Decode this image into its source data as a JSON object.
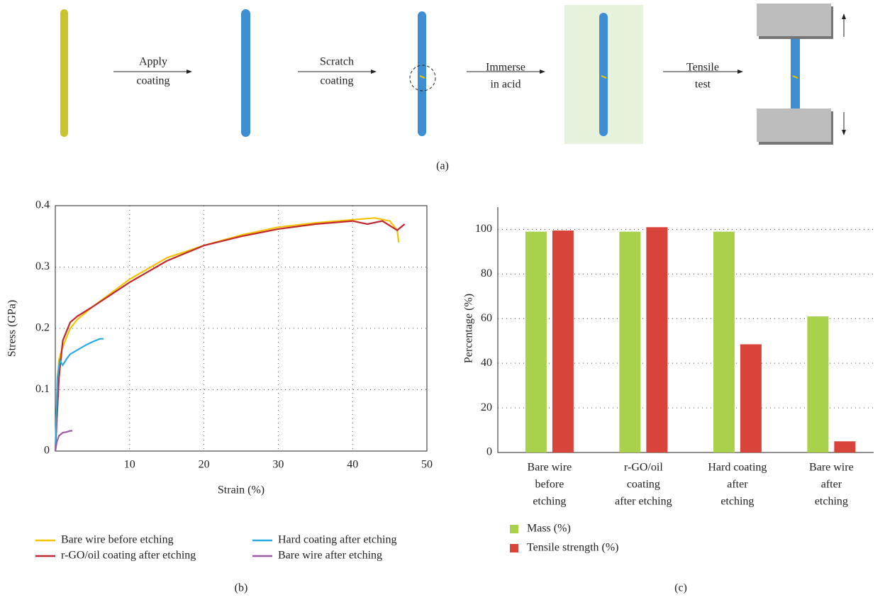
{
  "diagram": {
    "steps": [
      [
        "Apply",
        "coating"
      ],
      [
        "Scratch",
        "coating"
      ],
      [
        "Immerse",
        "in acid"
      ],
      [
        "Tensile",
        "test"
      ]
    ],
    "label": "(a)"
  },
  "chart_data": [
    {
      "type": "line",
      "label": "(b)",
      "x_label": "Strain (%)",
      "y_label": "Stress (GPa)",
      "xlim": [
        0,
        50
      ],
      "xticks": [
        10,
        20,
        30,
        40,
        50
      ],
      "ylim": [
        0,
        0.4
      ],
      "yticks": [
        0,
        0.1,
        0.2,
        0.3,
        0.4
      ],
      "grid": true,
      "legend": "bottom",
      "series": [
        {
          "name": "Bare wire before etching",
          "color": "#f5c400",
          "x": [
            0,
            0.3,
            0.5,
            1,
            2,
            3,
            5,
            10,
            15,
            20,
            25,
            30,
            35,
            40,
            43,
            45,
            46,
            46.2
          ],
          "values": [
            0,
            0.12,
            0.15,
            0.17,
            0.2,
            0.215,
            0.235,
            0.28,
            0.315,
            0.335,
            0.352,
            0.365,
            0.372,
            0.377,
            0.38,
            0.375,
            0.36,
            0.34
          ]
        },
        {
          "name": "r-GO/oil coating after etching",
          "color": "#c0282d",
          "x": [
            0,
            0.5,
            1,
            2,
            3,
            5,
            10,
            15,
            20,
            25,
            30,
            35,
            40,
            42,
            44,
            46,
            47
          ],
          "values": [
            0,
            0.12,
            0.18,
            0.21,
            0.22,
            0.235,
            0.275,
            0.31,
            0.335,
            0.35,
            0.362,
            0.37,
            0.375,
            0.37,
            0.375,
            0.36,
            0.37
          ]
        },
        {
          "name": "Hard coating after etching",
          "color": "#29abe2",
          "x": [
            0,
            0.3,
            0.6,
            1,
            1.5,
            2,
            3,
            4,
            5,
            6,
            6.5
          ],
          "values": [
            0,
            0.12,
            0.148,
            0.14,
            0.15,
            0.158,
            0.165,
            0.172,
            0.178,
            0.183,
            0.183
          ]
        },
        {
          "name": "Bare wire after etching",
          "color": "#9b59a8",
          "x": [
            0,
            0.2,
            0.5,
            1,
            1.5,
            2,
            2.3
          ],
          "values": [
            0,
            0.015,
            0.025,
            0.03,
            0.031,
            0.033,
            0.033
          ]
        }
      ]
    },
    {
      "type": "bar",
      "label": "(c)",
      "y_label": "Percentage (%)",
      "categories": [
        [
          "Bare wire",
          "before",
          "etching"
        ],
        [
          "r-GO/oil",
          "coating",
          "after etching"
        ],
        [
          "Hard coating",
          "after",
          "etching"
        ],
        [
          "Bare wire",
          "after",
          "etching"
        ]
      ],
      "ylim": [
        0,
        110
      ],
      "yticks": [
        0,
        20,
        40,
        60,
        80,
        100
      ],
      "grid": true,
      "legend": "bottom-left",
      "series": [
        {
          "name": "Mass (%)",
          "color": "#a9d14b",
          "values": [
            99,
            99,
            99,
            61
          ]
        },
        {
          "name": "Tensile strength (%)",
          "color": "#d9443a",
          "values": [
            99.5,
            101,
            48.5,
            5
          ]
        }
      ]
    }
  ]
}
